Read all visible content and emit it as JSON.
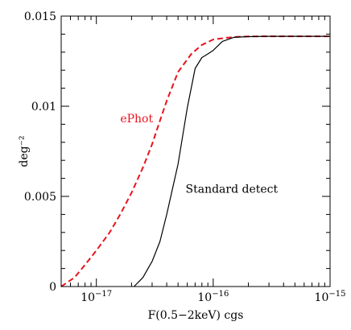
{
  "chart_data": {
    "type": "line",
    "title": "",
    "xlabel": "F(0.5−2keV) cgs",
    "ylabel": "deg⁻²",
    "x_scale": "log",
    "xlim": [
      5e-18,
      1e-15
    ],
    "ylim": [
      0,
      0.015
    ],
    "x_ticks": [
      {
        "value": 1e-17,
        "base": "10",
        "exp": "−17"
      },
      {
        "value": 1e-16,
        "base": "10",
        "exp": "−16"
      },
      {
        "value": 1e-15,
        "base": "10",
        "exp": "−15"
      }
    ],
    "y_ticks": [
      {
        "value": 0,
        "label": "0"
      },
      {
        "value": 0.005,
        "label": "0.005"
      },
      {
        "value": 0.01,
        "label": "0.01"
      },
      {
        "value": 0.015,
        "label": "0.015"
      }
    ],
    "grid": false,
    "series": [
      {
        "name": "ePhot",
        "color": "#e8141e",
        "dash": "dashed",
        "x": [
          5e-18,
          6.5e-18,
          8e-18,
          1e-17,
          1.3e-17,
          1.6e-17,
          2e-17,
          2.5e-17,
          3e-17,
          3.5e-17,
          4e-17,
          5e-17,
          6.5e-17,
          8e-17,
          1e-16,
          1.3e-16,
          1.6e-16,
          2e-16,
          3e-16,
          5e-16,
          1e-15
        ],
        "y": [
          0.0,
          0.0005,
          0.0012,
          0.002,
          0.003,
          0.004,
          0.0052,
          0.0066,
          0.0079,
          0.0092,
          0.0103,
          0.0119,
          0.0129,
          0.0134,
          0.0137,
          0.0138,
          0.01385,
          0.01387,
          0.01388,
          0.01388,
          0.01388
        ]
      },
      {
        "name": "Standard detect",
        "color": "#000000",
        "dash": "solid",
        "x": [
          2.1e-17,
          2.5e-17,
          3e-17,
          3.5e-17,
          4e-17,
          5e-17,
          6e-17,
          7e-17,
          8e-17,
          9e-17,
          1e-16,
          1.2e-16,
          1.5e-16,
          2e-16,
          3e-16,
          5e-16,
          1e-15
        ],
        "y": [
          0.0,
          0.0005,
          0.0014,
          0.0025,
          0.004,
          0.0068,
          0.0099,
          0.0121,
          0.0127,
          0.0129,
          0.0131,
          0.0136,
          0.01382,
          0.01386,
          0.01388,
          0.01388,
          0.01388
        ]
      }
    ],
    "annotations": [
      {
        "text": "ePhot",
        "color": "#e8141e",
        "x": 1.6e-17,
        "y": 0.0091
      },
      {
        "text": "Standard detect",
        "color": "#000000",
        "x": 5.8e-17,
        "y": 0.0052
      }
    ]
  }
}
